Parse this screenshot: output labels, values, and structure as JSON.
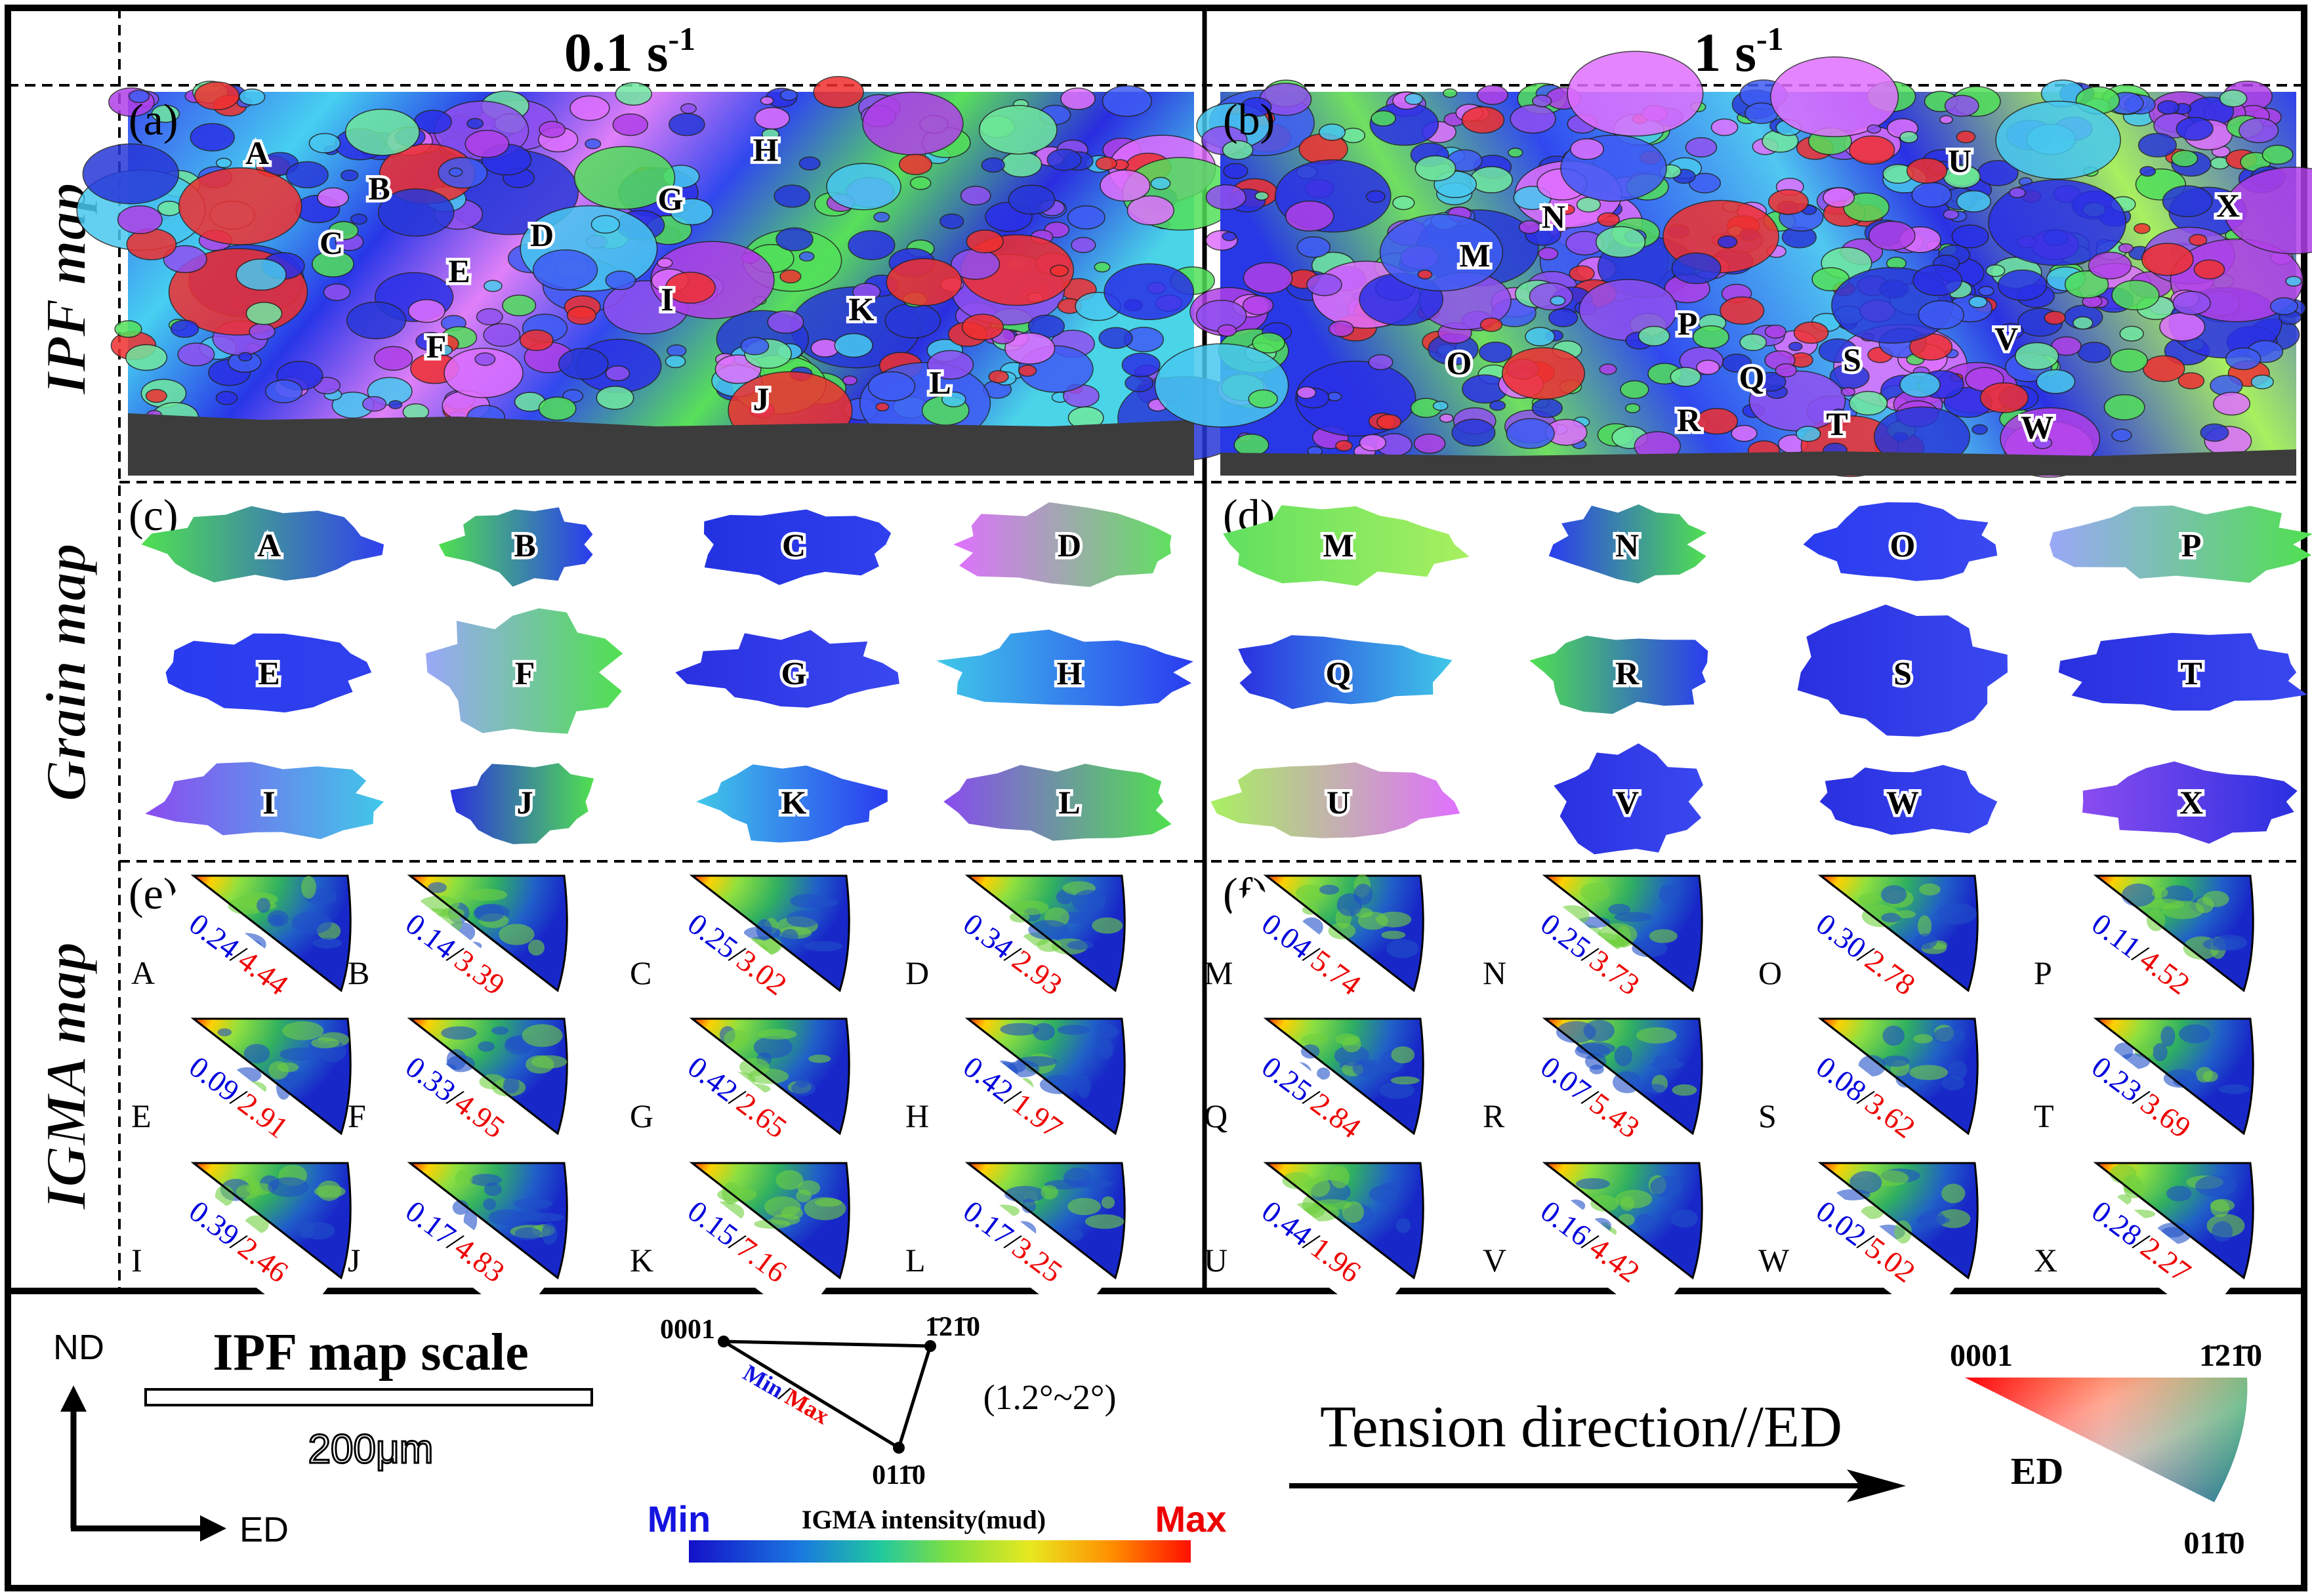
{
  "columns": {
    "left_header": "0.1 s",
    "left_sup": "-1",
    "right_header": "1 s",
    "right_sup": "-1"
  },
  "row_labels": {
    "ipf": "IPF map",
    "grain": "Grain map",
    "igma": "IGMA map"
  },
  "panels": {
    "a": "(a)",
    "b": "(b)",
    "c": "(c)",
    "d": "(d)",
    "e": "(e)",
    "f": "(f)"
  },
  "ipf_labels_left": [
    "A",
    "B",
    "C",
    "D",
    "E",
    "F",
    "G",
    "H",
    "I",
    "J",
    "K",
    "L"
  ],
  "ipf_labels_right": [
    "M",
    "N",
    "O",
    "P",
    "Q",
    "R",
    "S",
    "T",
    "U",
    "V",
    "W",
    "X"
  ],
  "grains_left": [
    "A",
    "B",
    "C",
    "D",
    "E",
    "F",
    "G",
    "H",
    "I",
    "J",
    "K",
    "L"
  ],
  "grains_right": [
    "M",
    "N",
    "O",
    "P",
    "Q",
    "R",
    "S",
    "T",
    "U",
    "V",
    "W",
    "X"
  ],
  "igma_left": [
    {
      "id": "A",
      "min": "0.24",
      "max": "4.44"
    },
    {
      "id": "B",
      "min": "0.14",
      "max": "3.39"
    },
    {
      "id": "C",
      "min": "0.25",
      "max": "3.02"
    },
    {
      "id": "D",
      "min": "0.34",
      "max": "2.93"
    },
    {
      "id": "E",
      "min": "0.09",
      "max": "2.91"
    },
    {
      "id": "F",
      "min": "0.33",
      "max": "4.95"
    },
    {
      "id": "G",
      "min": "0.42",
      "max": "2.65"
    },
    {
      "id": "H",
      "min": "0.42",
      "max": "1.97"
    },
    {
      "id": "I",
      "min": "0.39",
      "max": "2.46"
    },
    {
      "id": "J",
      "min": "0.17",
      "max": "4.83"
    },
    {
      "id": "K",
      "min": "0.15",
      "max": "7.16"
    },
    {
      "id": "L",
      "min": "0.17",
      "max": "3.25"
    }
  ],
  "igma_right": [
    {
      "id": "M",
      "min": "0.04",
      "max": "5.74"
    },
    {
      "id": "N",
      "min": "0.25",
      "max": "3.73"
    },
    {
      "id": "O",
      "min": "0.30",
      "max": "2.78"
    },
    {
      "id": "P",
      "min": "0.11",
      "max": "4.52"
    },
    {
      "id": "Q",
      "min": "0.25",
      "max": "2.84"
    },
    {
      "id": "R",
      "min": "0.07",
      "max": "5.43"
    },
    {
      "id": "S",
      "min": "0.08",
      "max": "3.62"
    },
    {
      "id": "T",
      "min": "0.23",
      "max": "3.69"
    },
    {
      "id": "U",
      "min": "0.44",
      "max": "1.96"
    },
    {
      "id": "V",
      "min": "0.16",
      "max": "4.42"
    },
    {
      "id": "W",
      "min": "0.02",
      "max": "5.02"
    },
    {
      "id": "X",
      "min": "0.28",
      "max": "2.27"
    }
  ],
  "legend": {
    "nd": "ND",
    "ed_axis": "ED",
    "scale_title": "IPF map scale",
    "scale_value": "200μm",
    "tri_0001": "0001",
    "tri_1210": "1̄21̄0",
    "tri_0110": "011̄0",
    "tri_min": "Min",
    "tri_slash": "/",
    "tri_max": "Max",
    "angle_range": "(1.2°~2°)",
    "bar_min": "Min",
    "bar_title": "IGMA intensity(mud)",
    "bar_max": "Max",
    "tension": "Tension direction//ED",
    "key_0001": "0001",
    "key_1210": "1̄21̄0",
    "key_0110": "011̄0",
    "key_ed": "ED"
  },
  "colors": {
    "blue": "#1414e0",
    "red": "#ee0000",
    "grain_blue": "#2a3cf0",
    "grain_green": "#50e050",
    "grain_cyan": "#40c8e8",
    "grain_purple": "#8a4cf0",
    "grain_magenta": "#e070ff"
  }
}
